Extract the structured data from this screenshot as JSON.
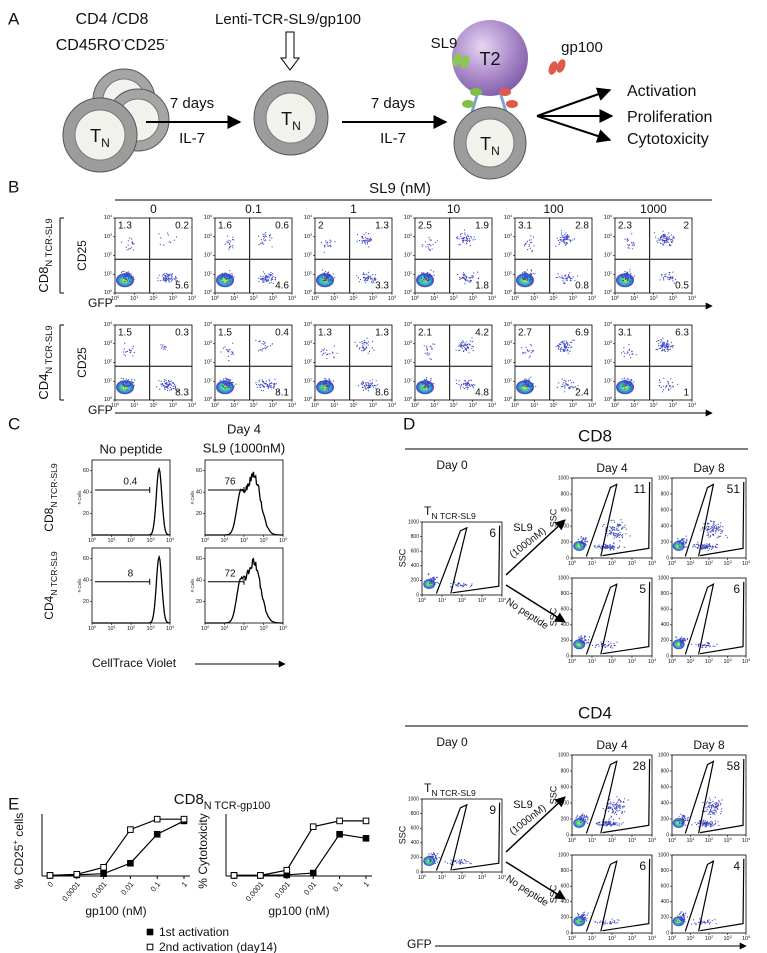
{
  "panel_a": {
    "label": "A",
    "donor_line1": "CD4 /CD8",
    "donor_line2": {
      "part1": "CD45RO",
      "sup1": "-",
      "part2": "CD25",
      "sup2": "-"
    },
    "cell_label": {
      "main": "T",
      "sub": "N"
    },
    "transduction": "Lenti-TCR-SL9/gp100",
    "steps": [
      {
        "time": "7 days",
        "factor": "IL-7"
      },
      {
        "time": "7 days",
        "factor": "IL-7"
      }
    ],
    "antigen_presenting": "T2",
    "peptides": [
      "SL9",
      "gp100"
    ],
    "outcomes": [
      "Activation",
      "Proliferation",
      "Cytotoxicity"
    ]
  },
  "panel_b": {
    "label": "B",
    "header": "SL9 (nM)",
    "concentrations": [
      "0",
      "0.1",
      "1",
      "10",
      "100",
      "1000"
    ],
    "y_axis": "CD25",
    "x_axis": "GFP",
    "log_ticks": [
      {
        "base": "10",
        "exp": "0"
      },
      {
        "base": "10",
        "exp": "1"
      },
      {
        "base": "10",
        "exp": "2"
      },
      {
        "base": "10",
        "exp": "3"
      },
      {
        "base": "10",
        "exp": "4"
      }
    ],
    "rows": [
      {
        "cell": "CD8",
        "subscript": "N TCR-SL9",
        "upper_left": [
          1.3,
          1.6,
          2,
          2.5,
          3.1,
          2.3
        ],
        "upper_right": [
          0.2,
          0.6,
          1.3,
          1.9,
          2.8,
          2
        ],
        "lower_right": [
          5.6,
          4.6,
          3.3,
          1.8,
          0.8,
          0.5
        ]
      },
      {
        "cell": "CD4",
        "subscript": "N TCR-SL9",
        "upper_left": [
          1.5,
          1.5,
          1.3,
          2.1,
          2.7,
          3.1
        ],
        "upper_right": [
          0.3,
          0.4,
          1.3,
          4.2,
          6.9,
          6.3
        ],
        "lower_right": [
          8.3,
          8.1,
          8.6,
          4.8,
          2.4,
          1
        ]
      }
    ]
  },
  "panel_c": {
    "label": "C",
    "columns": [
      {
        "lines": [
          "No peptide"
        ]
      },
      {
        "lines": [
          "Day 4",
          "SL9 (1000nM)"
        ]
      }
    ],
    "y_axis": "# Cells",
    "y_ticks": [
      20,
      40,
      60
    ],
    "x_axis": "CellTrace Violet",
    "rows": [
      {
        "cell": "CD8",
        "subscript": "N TCR-SL9",
        "gates": [
          0.4,
          76
        ]
      },
      {
        "cell": "CD4",
        "subscript": "N TCR-SL9",
        "gates": [
          8,
          72
        ]
      }
    ]
  },
  "panel_d": {
    "label": "D",
    "y_axis": "SSC",
    "y_ticks": [
      0,
      200,
      400,
      600,
      800,
      1000
    ],
    "x_axis": "GFP",
    "treatment": {
      "line1": "SL9",
      "line2": "(1000nM)",
      "control": "No peptide"
    },
    "sections": [
      {
        "title": "CD8",
        "days": [
          "Day 0",
          "Day 4",
          "Day 8"
        ],
        "start_population": {
          "main": "T",
          "sub": "N TCR-SL9"
        },
        "day0_gate": 6,
        "sl9_gates": [
          11,
          51
        ],
        "no_peptide_gates": [
          5,
          6
        ]
      },
      {
        "title": "CD4",
        "days": [
          "Day 0",
          "Day 4",
          "Day 8"
        ],
        "start_population": {
          "main": "T",
          "sub": "N TCR-SL9"
        },
        "day0_gate": 9,
        "sl9_gates": [
          28,
          58
        ],
        "no_peptide_gates": [
          6,
          4
        ]
      }
    ]
  },
  "panel_e": {
    "label": "E",
    "title": {
      "main": "CD8",
      "sub": "N TCR-gp100"
    }
  },
  "chart_data": [
    {
      "type": "line",
      "y_label": {
        "part1": "% CD25",
        "sup": "+",
        "part2": " cells"
      },
      "x_label": "gp100 (nM)",
      "categories": [
        "0",
        "0.0001",
        "0.001",
        "0.01",
        "0.1",
        "1"
      ],
      "ylim": [
        0,
        100
      ],
      "series": [
        {
          "name": "1st activation",
          "color": "#000000",
          "marker": "filled-square",
          "values": [
            1,
            2,
            4,
            22,
            72,
            95
          ]
        },
        {
          "name": "2nd activation (day14)",
          "color": "#000000",
          "marker": "open-square",
          "values": [
            1,
            3,
            15,
            80,
            98,
            98
          ]
        }
      ]
    },
    {
      "type": "line",
      "y_label": {
        "part1": "% Cytotoxicity"
      },
      "x_label": "gp100 (nM)",
      "categories": [
        "0",
        "0.0001",
        "0.001",
        "0.01",
        "0.1",
        "1"
      ],
      "ylim": [
        0,
        100
      ],
      "series": [
        {
          "color": "#000000",
          "marker": "filled-square",
          "values": [
            1,
            1,
            2,
            5,
            72,
            65
          ]
        },
        {
          "color": "#000000",
          "marker": "open-square",
          "values": [
            1,
            1,
            10,
            85,
            95,
            95
          ]
        }
      ]
    }
  ]
}
